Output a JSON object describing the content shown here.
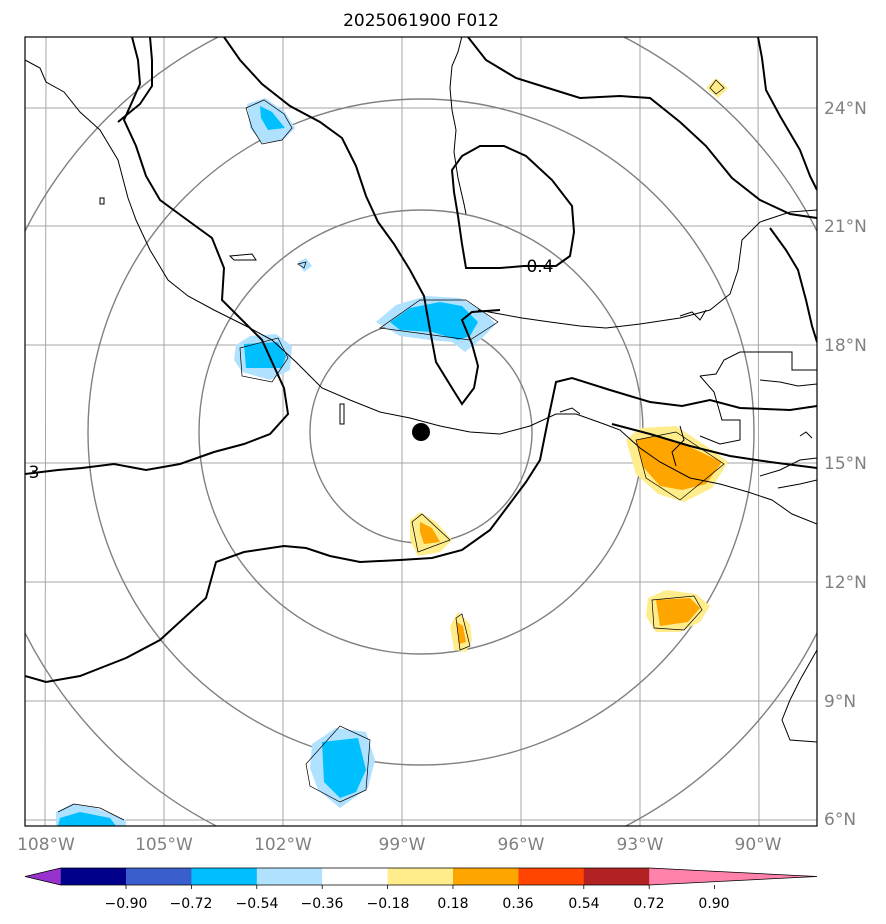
{
  "title": "2025061900 F012",
  "map": {
    "lon_labels": [
      "108°W",
      "105°W",
      "102°W",
      "99°W",
      "96°W",
      "93°W",
      "90°W"
    ],
    "lat_labels": [
      "24°N",
      "21°N",
      "18°N",
      "15°N",
      "12°N",
      "9°N",
      "6°N"
    ],
    "contour_labels": [
      "0.4",
      "3"
    ],
    "center_marker": "storm-center-dot",
    "range_rings": 4
  },
  "colorbar": {
    "ticks": [
      "−0.90",
      "−0.72",
      "−0.54",
      "−0.36",
      "−0.18",
      "0.18",
      "0.36",
      "0.54",
      "0.72",
      "0.90"
    ],
    "colors": [
      "#9932cc",
      "#00008b",
      "#3a5fcd",
      "#00bfff",
      "#b0e2ff",
      "#ffffff",
      "#ffec8b",
      "#ffa500",
      "#ff4500",
      "#b22222",
      "#ff82ab"
    ]
  },
  "colors": {
    "grid": "#a6a6a6",
    "rings": "#808080",
    "coast": "#000000"
  }
}
